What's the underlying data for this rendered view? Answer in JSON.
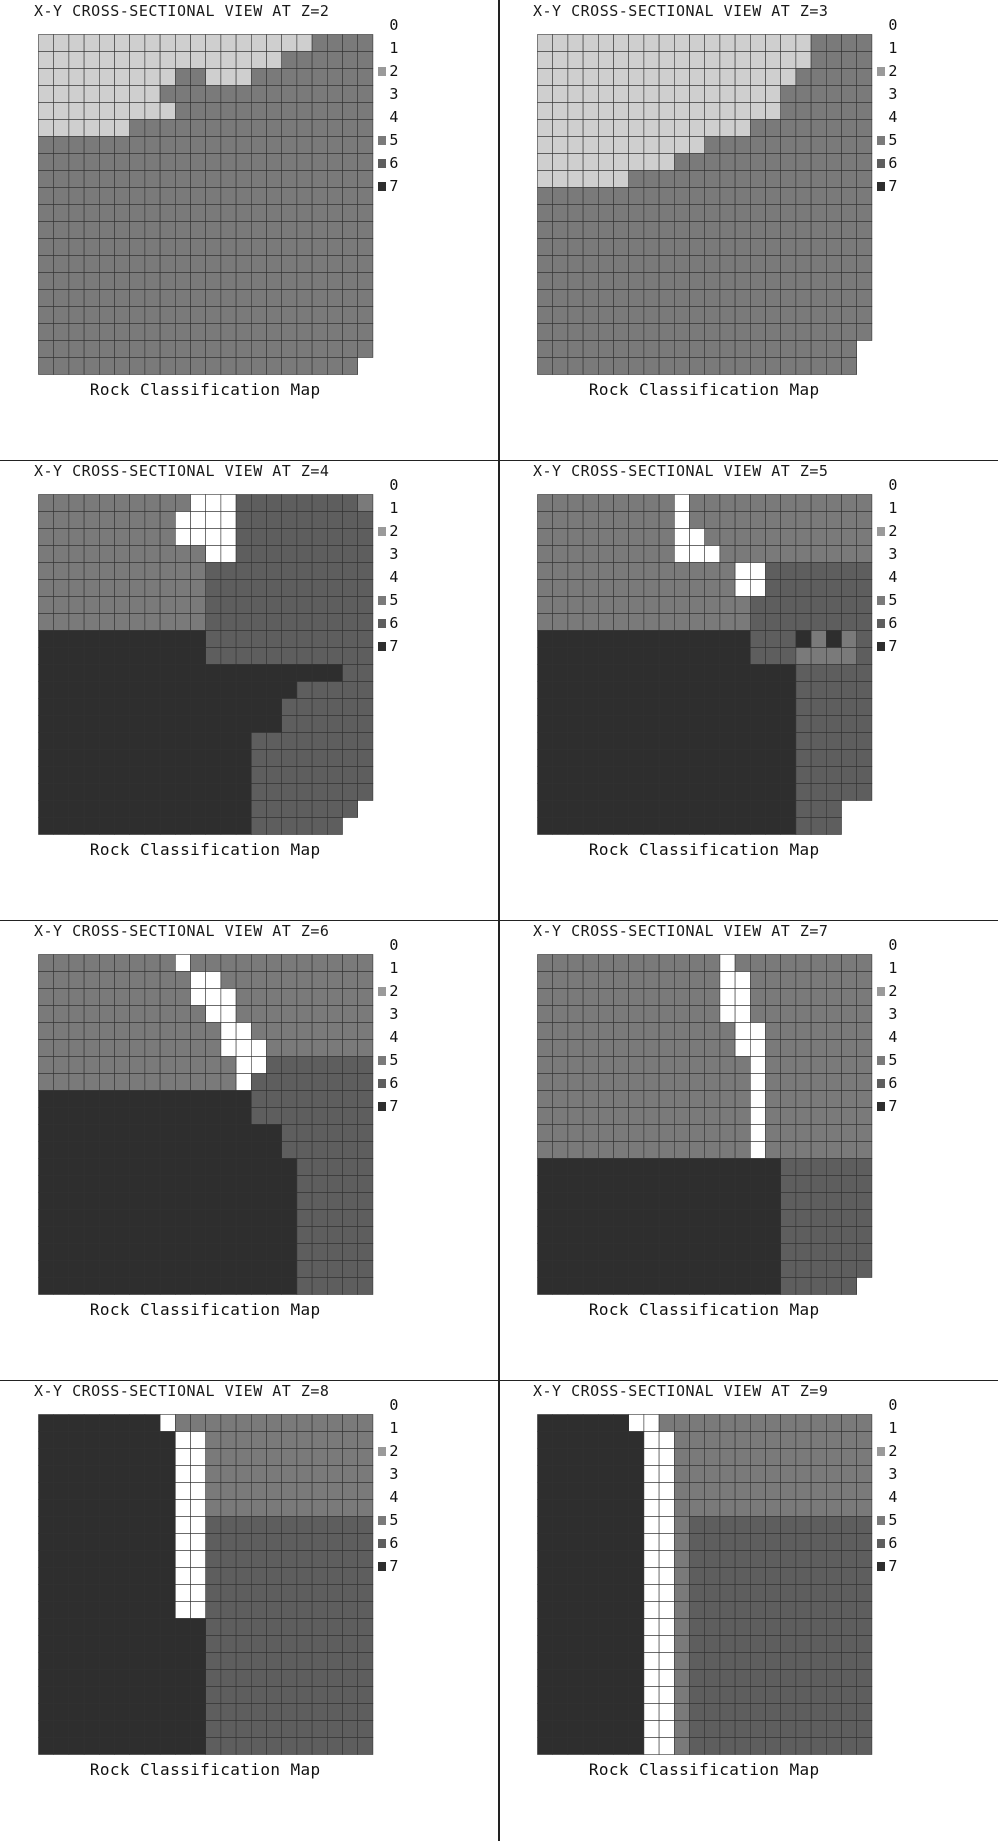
{
  "legend_classes": [
    "0",
    "1",
    "2",
    "3",
    "4",
    "5",
    "6",
    "7"
  ],
  "colors": {
    "class_0": "#ffffff",
    "class_1": "#f2f2f2",
    "class_2": "#9a9a9a",
    "class_3": "#d9d9d9",
    "class_4": "#cfcfcf",
    "class_5": "#7a7a7a",
    "class_6": "#5e5e5e",
    "class_7": "#2e2e2e",
    "gridline": "#333333"
  },
  "chart_data": [
    {
      "type": "heatmap",
      "title": "X-Y CROSS-SECTIONAL VIEW AT Z=2",
      "caption": "Rock Classification Map",
      "rows": [
        "4444444444444444445555",
        "4444444444444444555555",
        "4444444445544455555555",
        "4444444455555555555555",
        "4444444445555555555555",
        "4444445555555555555555",
        "5555555555555555555555",
        "5555555555555555555555",
        "5555555555555555555555",
        "5555555555555555555555",
        "5555555555555555555555",
        "5555555555555555555555",
        "5555555555555555555555",
        "5555555555555555555555",
        "5555555555555555555555",
        "5555555555555555555555",
        "5555555555555555555555",
        "5555555555555555555555",
        "5555555555555555555555",
        "555555555555555555555-"
      ]
    },
    {
      "type": "heatmap",
      "title": "X-Y CROSS-SECTIONAL VIEW AT Z=3",
      "caption": "Rock Classification Map",
      "rows": [
        "4444444444444444445555",
        "4444444444444444445555",
        "4444444444444444455555",
        "4444444444444444555555",
        "4444444444444444555555",
        "4444444444444455555555",
        "4444444444455555555555",
        "4444444445555555555555",
        "4444445555555555555555",
        "5555555555555555555555",
        "5555555555555555555555",
        "5555555555555555555555",
        "5555555555555555555555",
        "5555555555555555555555",
        "5555555555555555555555",
        "5555555555555555555555",
        "5555555555555555555555",
        "5555555555555555555555",
        "555555555555555555555-",
        "555555555555555555555-"
      ]
    },
    {
      "type": "heatmap",
      "title": "X-Y CROSS-SECTIONAL VIEW AT Z=4",
      "caption": "Rock Classification Map",
      "rows": [
        "5555555555000666666665",
        "5555555550000666666666",
        "5555555550000666666666",
        "5555555555500666666666",
        "5555555555566666666666",
        "5555555555566666666666",
        "5555555555566666666666",
        "5555555555566666666666",
        "7777777777766666666666",
        "7777777777766666666666",
        "7777777777777777777766",
        "7777777777777777766666",
        "7777777777777777666666",
        "7777777777777777666666",
        "7777777777777766666666",
        "7777777777777766666666",
        "7777777777777766666666",
        "7777777777777766666666",
        "777777777777776666666-",
        "77777777777777666666--"
      ]
    },
    {
      "type": "heatmap",
      "title": "X-Y CROSS-SECTIONAL VIEW AT Z=5",
      "caption": "Rock Classification Map",
      "rows": [
        "5555555550555555555555",
        "5555555550555555555555",
        "5555555550055555555555",
        "5555555550005555555555",
        "5555555555555006666666",
        "5555555555555006666666",
        "5555555555555566666666",
        "5555555555555566666666",
        "7777777777777766675756",
        "7777777777777766655556",
        "7777777777777777766666",
        "7777777777777777766666",
        "7777777777777777766666",
        "7777777777777777766666",
        "7777777777777777766666",
        "7777777777777777766666",
        "7777777777777777766666",
        "7777777777777777766666",
        "77777777777777777666--",
        "77777777777777777666--"
      ]
    },
    {
      "type": "heatmap",
      "title": "X-Y CROSS-SECTIONAL VIEW AT Z=6",
      "caption": "Rock Classification Map",
      "rows": [
        "5555555550555555555555",
        "5555555555005555555555",
        "5555555555000555555555",
        "5555555555500555555555",
        "5555555555550055555555",
        "5555555555550005555555",
        "5555555555555006666666",
        "5555555555555066666666",
        "7777777777777766666666",
        "7777777777777766666666",
        "7777777777777777666666",
        "7777777777777777666666",
        "7777777777777777766666",
        "7777777777777777766666",
        "7777777777777777766666",
        "7777777777777777766666",
        "7777777777777777766666",
        "7777777777777777766666",
        "7777777777777777766666",
        "7777777777777777766666"
      ]
    },
    {
      "type": "heatmap",
      "title": "X-Y CROSS-SECTIONAL VIEW AT Z=7",
      "caption": "Rock Classification Map",
      "rows": [
        "5555555555550555555555",
        "5555555555550055555555",
        "5555555555550055555555",
        "5555555555550055555555",
        "5555555555555005555555",
        "5555555555555005555555",
        "5555555555555505555555",
        "5555555555555505555555",
        "5555555555555505555555",
        "5555555555555505555555",
        "5555555555555505555555",
        "5555555555555505555555",
        "7777777777777777666666",
        "7777777777777777666666",
        "7777777777777777666666",
        "7777777777777777666666",
        "7777777777777777666666",
        "7777777777777777666666",
        "7777777777777777666666",
        "777777777777777766666-"
      ]
    },
    {
      "type": "heatmap",
      "title": "X-Y CROSS-SECTIONAL VIEW AT Z=8",
      "caption": "Rock Classification Map",
      "rows": [
        "7777777705555555555555",
        "7777777770055555555555",
        "7777777770055555555555",
        "7777777770055555555555",
        "7777777770055555555555",
        "7777777770055555555555",
        "7777777770066666666666",
        "7777777770066666666666",
        "7777777770066666666666",
        "7777777770066666666666",
        "7777777770066666666666",
        "7777777770066666666666",
        "7777777777766666666666",
        "7777777777766666666666",
        "7777777777766666666666",
        "7777777777766666666666",
        "7777777777766666666666",
        "7777777777766666666666",
        "7777777777766666666666",
        "7777777777766666666666"
      ]
    },
    {
      "type": "heatmap",
      "title": "X-Y CROSS-SECTIONAL VIEW AT Z=9",
      "caption": "Rock Classification Map",
      "rows": [
        "7777770055555555555555",
        "7777777005555555555555",
        "7777777005555555555555",
        "7777777005555555555555",
        "7777777005555555555555",
        "7777777005555555555555",
        "7777777005666666666666",
        "7777777005666666666666",
        "7777777005666666666666",
        "7777777005666666666666",
        "7777777005666666666666",
        "7777777005666666666666",
        "7777777005666666666666",
        "7777777005666666666666",
        "7777777005666666666666",
        "7777777005666666666666",
        "7777777005666666666666",
        "7777777005666666666666",
        "7777777005666666666666",
        "7777777005666666666666"
      ]
    }
  ]
}
